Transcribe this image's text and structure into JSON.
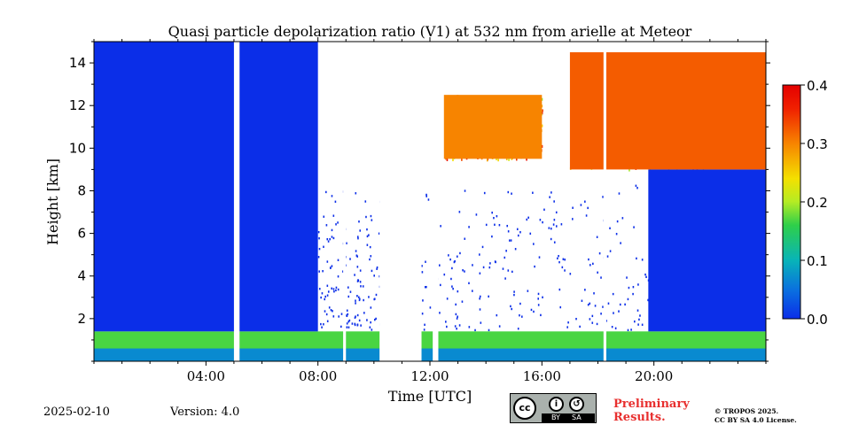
{
  "chart_data": {
    "type": "heatmap",
    "title": "Quasi particle depolarization ratio (V1) at 532 nm from arielle at Meteor",
    "xlabel": "Time [UTC]",
    "ylabel": "Height [km]",
    "xlim": [
      0,
      24
    ],
    "ylim": [
      0,
      15
    ],
    "x_ticks": [
      4,
      8,
      12,
      16,
      20
    ],
    "x_tick_labels": [
      "04:00",
      "08:00",
      "12:00",
      "16:00",
      "20:00"
    ],
    "y_ticks": [
      2,
      4,
      6,
      8,
      10,
      12,
      14
    ],
    "y_tick_labels": [
      "2",
      "4",
      "6",
      "8",
      "10",
      "12",
      "14"
    ],
    "colorbar": {
      "range": [
        0.0,
        0.4
      ],
      "ticks": [
        0.0,
        0.1,
        0.2,
        0.3,
        0.4
      ],
      "tick_labels": [
        "0.0",
        "0.1",
        "0.2",
        "0.3",
        "0.4"
      ],
      "colormap": [
        "#0b2ee8",
        "#0a6ee0",
        "#08b4b8",
        "#2ecf4a",
        "#b4ec24",
        "#f4e000",
        "#f78400",
        "#f02000",
        "#e40000"
      ]
    },
    "layers": [
      {
        "name": "boundary-layer-aerosol",
        "time_range": [
          0,
          24
        ],
        "height_range": [
          0.4,
          1.4
        ],
        "value": 0.16
      },
      {
        "name": "near-surface-layer",
        "time_range": [
          0,
          24
        ],
        "height_range": [
          0.0,
          0.6
        ],
        "value": 0.07
      },
      {
        "name": "low-depol-column",
        "time_range": [
          0,
          8
        ],
        "height_range": [
          1.4,
          15
        ],
        "value": 0.0
      },
      {
        "name": "low-depol-column",
        "time_range": [
          19.8,
          24
        ],
        "height_range": [
          1.4,
          9.0
        ],
        "value": 0.0
      },
      {
        "name": "cirrus",
        "time_range": [
          12.5,
          16.0
        ],
        "height_range": [
          9.5,
          12.5
        ],
        "value": 0.3
      },
      {
        "name": "cirrus",
        "time_range": [
          17.0,
          24
        ],
        "height_range": [
          9.0,
          14.5
        ],
        "value": 0.32
      }
    ],
    "data_gaps": [
      [
        5.0,
        5.2
      ],
      [
        8.9,
        9.0
      ],
      [
        10.2,
        11.7
      ],
      [
        12.1,
        12.3
      ],
      [
        18.2,
        18.3
      ]
    ]
  },
  "footer": {
    "date": "2025-02-10",
    "version": "Version: 4.0",
    "license_badge": {
      "cc": "cc",
      "by": "BY",
      "sa": "SA"
    },
    "preliminary_line1": "Preliminary",
    "preliminary_line2": "Results.",
    "credit_line1": "© TROPOS 2025.",
    "credit_line2": "CC BY SA 4.0 License."
  }
}
